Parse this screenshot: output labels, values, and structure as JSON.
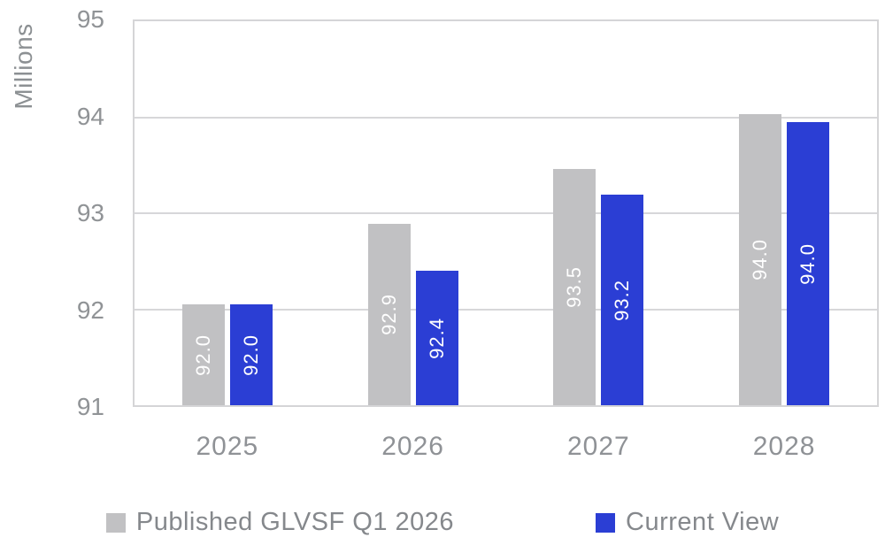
{
  "chart_data": {
    "type": "bar",
    "title": "",
    "xlabel": "",
    "ylabel": "Millions",
    "categories": [
      "2025",
      "2026",
      "2027",
      "2028"
    ],
    "series": [
      {
        "name": "Published GLVSF Q1 2026",
        "color": "#c1c1c3",
        "values": [
          92.0,
          92.9,
          93.5,
          94.0
        ],
        "labels": [
          "92.0",
          "92.9",
          "93.5",
          "94.0"
        ],
        "precise_values": [
          92.05,
          92.89,
          93.46,
          94.03
        ]
      },
      {
        "name": "Current View",
        "color": "#2b3ed4",
        "values": [
          92.0,
          92.4,
          93.2,
          94.0
        ],
        "labels": [
          "92.0",
          "92.4",
          "93.2",
          "94.0"
        ],
        "precise_values": [
          92.05,
          92.4,
          93.19,
          93.95
        ]
      }
    ],
    "ylim": [
      91,
      95
    ],
    "yticks": [
      95,
      94,
      93,
      92,
      91
    ],
    "grid": "horizontal",
    "gridline_color": "#d7d7d9",
    "axis_text_color": "#909396",
    "bar_label_color": "#ffffff",
    "legend_position": "bottom"
  }
}
